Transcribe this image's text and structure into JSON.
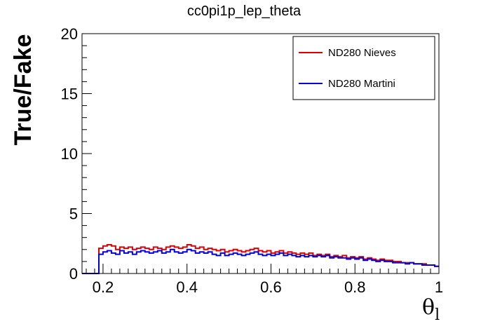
{
  "chart_data": {
    "type": "line",
    "title": "cc0pi1p_lep_theta",
    "xlabel": "θ",
    "xlabel_sub": "l",
    "ylabel": "True/Fake",
    "xlim": [
      0.15,
      1.0
    ],
    "ylim": [
      0,
      20
    ],
    "x_ticks": [
      0.2,
      0.4,
      0.6,
      0.8,
      1.0
    ],
    "x_tick_labels": [
      "0.2",
      "0.4",
      "0.6",
      "0.8",
      "1"
    ],
    "y_ticks": [
      0,
      5,
      10,
      15,
      20
    ],
    "y_tick_labels": [
      "0",
      "5",
      "10",
      "15",
      "20"
    ],
    "grid": false,
    "legend_position": "top-right",
    "bin_edges": [
      0.15,
      0.19,
      0.2,
      0.21,
      0.22,
      0.23,
      0.24,
      0.25,
      0.26,
      0.27,
      0.28,
      0.29,
      0.3,
      0.31,
      0.32,
      0.33,
      0.34,
      0.35,
      0.36,
      0.37,
      0.38,
      0.39,
      0.4,
      0.41,
      0.42,
      0.43,
      0.44,
      0.45,
      0.46,
      0.47,
      0.48,
      0.49,
      0.5,
      0.51,
      0.52,
      0.53,
      0.54,
      0.55,
      0.56,
      0.57,
      0.58,
      0.59,
      0.6,
      0.61,
      0.62,
      0.63,
      0.64,
      0.65,
      0.66,
      0.67,
      0.68,
      0.69,
      0.7,
      0.71,
      0.72,
      0.73,
      0.74,
      0.75,
      0.76,
      0.77,
      0.78,
      0.79,
      0.8,
      0.81,
      0.82,
      0.83,
      0.84,
      0.85,
      0.86,
      0.87,
      0.88,
      0.89,
      0.9,
      0.91,
      0.92,
      0.93,
      0.94,
      0.95,
      0.96,
      0.97,
      0.98,
      0.99,
      1.0
    ],
    "series": [
      {
        "name": "ND280 Nieves",
        "color": "#dd0000",
        "values": [
          0,
          2.1,
          2.3,
          2.4,
          2.3,
          2.0,
          2.2,
          2.1,
          2.2,
          2.0,
          2.1,
          2.2,
          2.1,
          2.0,
          2.2,
          2.1,
          2.0,
          2.2,
          2.3,
          2.2,
          2.1,
          2.2,
          2.4,
          2.3,
          2.1,
          2.2,
          2.0,
          2.1,
          2.0,
          1.9,
          2.0,
          1.8,
          1.9,
          2.0,
          1.9,
          1.8,
          1.9,
          2.0,
          2.1,
          1.9,
          1.8,
          1.9,
          1.7,
          1.8,
          1.9,
          1.7,
          1.8,
          1.7,
          1.6,
          1.7,
          1.6,
          1.7,
          1.5,
          1.6,
          1.5,
          1.6,
          1.4,
          1.5,
          1.4,
          1.5,
          1.3,
          1.4,
          1.3,
          1.4,
          1.2,
          1.3,
          1.2,
          1.1,
          1.2,
          1.1,
          1.1,
          1.0,
          1.0,
          0.9,
          0.9,
          0.9,
          0.8,
          0.8,
          0.8,
          0.7,
          0.7,
          0.6
        ]
      },
      {
        "name": "ND280 Martini",
        "color": "#0000dd",
        "values": [
          0,
          1.6,
          1.8,
          1.9,
          1.7,
          1.6,
          1.9,
          1.7,
          1.8,
          1.6,
          1.8,
          1.9,
          1.8,
          1.7,
          1.8,
          1.9,
          1.7,
          1.8,
          2.0,
          1.8,
          1.7,
          1.8,
          2.0,
          1.9,
          1.7,
          1.8,
          1.7,
          1.8,
          1.6,
          1.5,
          1.7,
          1.5,
          1.6,
          1.7,
          1.6,
          1.5,
          1.6,
          1.7,
          1.8,
          1.6,
          1.5,
          1.6,
          1.5,
          1.6,
          1.7,
          1.5,
          1.6,
          1.5,
          1.4,
          1.5,
          1.4,
          1.5,
          1.4,
          1.5,
          1.4,
          1.5,
          1.3,
          1.4,
          1.3,
          1.3,
          1.2,
          1.3,
          1.2,
          1.3,
          1.1,
          1.2,
          1.1,
          1.0,
          1.1,
          1.0,
          1.0,
          0.9,
          0.9,
          0.9,
          0.8,
          0.9,
          0.8,
          0.8,
          0.7,
          0.7,
          0.7,
          0.6
        ]
      }
    ]
  }
}
